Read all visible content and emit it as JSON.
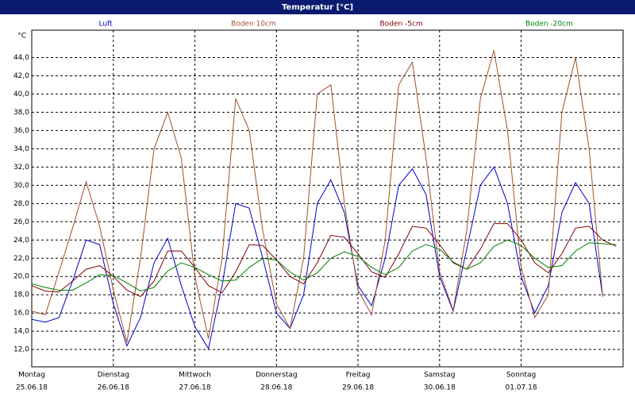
{
  "chart_data": {
    "type": "line",
    "title": "Temperatur [°C]",
    "ylabel": "°C",
    "x": [
      0,
      4,
      8,
      12,
      16,
      20,
      24,
      28,
      32,
      36,
      40,
      44,
      48,
      52,
      56,
      60,
      64,
      68,
      72,
      76,
      80,
      84,
      88,
      92,
      96,
      100,
      104,
      108,
      112,
      116,
      120,
      124,
      128,
      132,
      136,
      140,
      144,
      148,
      152,
      156,
      160,
      164,
      168,
      172
    ],
    "xlim": [
      0,
      174
    ],
    "xticks": [
      {
        "value": 0,
        "label": "Montag",
        "date": "25.06.18"
      },
      {
        "value": 24,
        "label": "Dienstag",
        "date": "26.06.18"
      },
      {
        "value": 48,
        "label": "Mittwoch",
        "date": "27.06.18"
      },
      {
        "value": 72,
        "label": "Donnerstag",
        "date": "28.06.18"
      },
      {
        "value": 96,
        "label": "Freitag",
        "date": "29.06.18"
      },
      {
        "value": 120,
        "label": "Samstag",
        "date": "30.06.18"
      },
      {
        "value": 144,
        "label": "Sonntag",
        "date": "01.07.18"
      }
    ],
    "ylim": [
      10.1,
      47.0
    ],
    "yticks": [
      {
        "value": 12,
        "label": "12,0"
      },
      {
        "value": 14,
        "label": "14,0"
      },
      {
        "value": 16,
        "label": "16,0"
      },
      {
        "value": 18,
        "label": "18,0"
      },
      {
        "value": 20,
        "label": "20,0"
      },
      {
        "value": 22,
        "label": "22,0"
      },
      {
        "value": 24,
        "label": "24,0"
      },
      {
        "value": 26,
        "label": "26,0"
      },
      {
        "value": 28,
        "label": "28,0"
      },
      {
        "value": 30,
        "label": "30,0"
      },
      {
        "value": 32,
        "label": "32,0"
      },
      {
        "value": 34,
        "label": "34,0"
      },
      {
        "value": 36,
        "label": "36,0"
      },
      {
        "value": 38,
        "label": "38,0"
      },
      {
        "value": 40,
        "label": "40,0"
      },
      {
        "value": 42,
        "label": "42,0"
      },
      {
        "value": 44,
        "label": "44,0"
      }
    ],
    "grid": true,
    "series": [
      {
        "name": "Luft",
        "color": "#0000cc",
        "values": [
          15.3,
          15,
          15.5,
          19.5,
          24,
          23.5,
          17,
          12.4,
          15.5,
          21.5,
          24.2,
          19,
          14.5,
          12.1,
          19,
          28,
          27.5,
          22,
          16,
          14.3,
          18,
          28,
          30.6,
          27,
          19,
          16.8,
          22,
          30,
          31.8,
          29,
          20,
          16.2,
          23,
          30,
          32,
          28,
          20,
          16,
          19,
          27,
          30.3,
          28,
          17.8,
          null
        ]
      },
      {
        "name": "Boden 10cm",
        "color": "#a0522d",
        "values": [
          16.2,
          15.8,
          20.5,
          25.3,
          30.4,
          25.5,
          18.5,
          12.8,
          22,
          34,
          38,
          33,
          20,
          13.2,
          22,
          39.5,
          36,
          25,
          17,
          14.3,
          22,
          40,
          41,
          28,
          18.5,
          15.8,
          24,
          41,
          43.5,
          33,
          20.5,
          16.3,
          25,
          39.5,
          44.8,
          36,
          21,
          15.5,
          18,
          38,
          44,
          34,
          17.8,
          null
        ]
      },
      {
        "name": "Boden -5cm",
        "color": "#800000",
        "values": [
          19,
          18.4,
          18.3,
          19.5,
          20.8,
          21.2,
          20,
          18.5,
          17.8,
          19.5,
          22.8,
          22.8,
          21,
          19,
          18.2,
          20.5,
          23.5,
          23.4,
          21.8,
          20,
          19.2,
          21.5,
          24.5,
          24.3,
          22.5,
          20.5,
          19.9,
          22.5,
          25.5,
          25.3,
          23.5,
          21.5,
          20.8,
          23,
          25.8,
          25.8,
          24,
          21.5,
          20.4,
          22.5,
          25.3,
          25.5,
          24,
          23.3
        ]
      },
      {
        "name": "Boden -20cm",
        "color": "#008000",
        "values": [
          19.2,
          18.8,
          18.5,
          18.5,
          19.3,
          20.2,
          20.1,
          19.3,
          18.4,
          18.8,
          20.6,
          21.5,
          21,
          20.2,
          19.5,
          19.6,
          21,
          22,
          21.8,
          20.5,
          19.6,
          20.4,
          22,
          22.7,
          22.2,
          21,
          20.2,
          21,
          22.8,
          23.5,
          23,
          21.6,
          20.8,
          21.5,
          23.3,
          24,
          23.4,
          22,
          21,
          21.2,
          22.8,
          23.7,
          23.6,
          23.5
        ]
      }
    ]
  }
}
